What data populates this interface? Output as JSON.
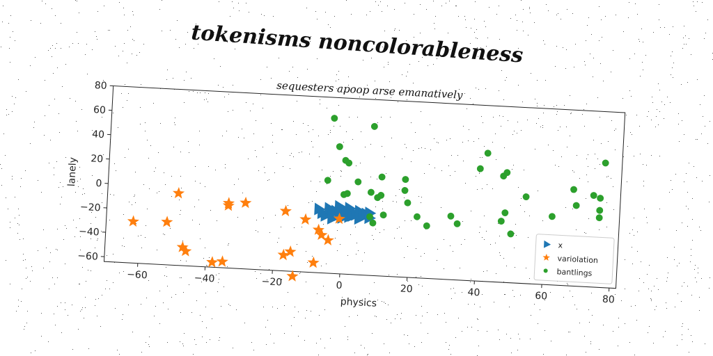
{
  "figure": {
    "suptitle": "tokenisms noncolorableness"
  },
  "chart_data": {
    "type": "scatter",
    "title": "sequesters apoop arse emanatively",
    "xlabel": "physics",
    "ylabel": "lanely",
    "xlim": [
      -70,
      82
    ],
    "ylim": [
      -64,
      80
    ],
    "xticks": [
      -60,
      -40,
      -20,
      0,
      20,
      40,
      60,
      80
    ],
    "yticks": [
      -60,
      -40,
      -20,
      0,
      20,
      40,
      60,
      80
    ],
    "xtick_labels": [
      "−60",
      "−40",
      "−20",
      "0",
      "20",
      "40",
      "60",
      "80"
    ],
    "ytick_labels": [
      "−60",
      "−40",
      "−20",
      "0",
      "20",
      "40",
      "60",
      "80"
    ],
    "grid": false,
    "legend_position": "bottom-right",
    "series": [
      {
        "name": "x",
        "marker": "triangle-right",
        "color": "#1f77b4",
        "points": [
          [
            -7,
            -12
          ],
          [
            -6,
            -15
          ],
          [
            -5,
            -17
          ],
          [
            -4,
            -11
          ],
          [
            -3,
            -14
          ],
          [
            -3,
            -19
          ],
          [
            -2,
            -13
          ],
          [
            -1,
            -16
          ],
          [
            0,
            -11
          ],
          [
            0,
            -18
          ],
          [
            1,
            -14
          ],
          [
            1,
            -12
          ],
          [
            2,
            -17
          ],
          [
            3,
            -13
          ],
          [
            3,
            -16
          ],
          [
            4,
            -15
          ],
          [
            5,
            -12
          ],
          [
            5,
            -18
          ],
          [
            6,
            -16
          ],
          [
            7,
            -14
          ],
          [
            8,
            -13
          ],
          [
            8,
            -17
          ],
          [
            -1,
            -9
          ],
          [
            2,
            -10
          ]
        ]
      },
      {
        "name": "variolation",
        "marker": "star",
        "color": "#ff7f0e",
        "points": [
          [
            -62,
            -30
          ],
          [
            -52,
            -29
          ],
          [
            -49,
            -5
          ],
          [
            -47,
            -49
          ],
          [
            -46,
            -52
          ],
          [
            -38,
            -60
          ],
          [
            -35,
            -59
          ],
          [
            -34,
            -11
          ],
          [
            -34,
            -13
          ],
          [
            -29,
            -10
          ],
          [
            -17,
            -15
          ],
          [
            -17,
            -51
          ],
          [
            -15,
            -48
          ],
          [
            -14,
            -68
          ],
          [
            -11,
            -21
          ],
          [
            -8,
            -56
          ],
          [
            -7,
            -29
          ],
          [
            -6,
            -33
          ],
          [
            -4,
            -37
          ],
          [
            -1,
            -19
          ]
        ]
      },
      {
        "name": "bantlings",
        "marker": "circle",
        "color": "#2ca02c",
        "points": [
          [
            -4,
            63
          ],
          [
            -2,
            40
          ],
          [
            -5,
            12
          ],
          [
            0,
            29
          ],
          [
            1,
            27
          ],
          [
            0,
            1
          ],
          [
            1,
            2
          ],
          [
            4,
            12
          ],
          [
            8,
            58
          ],
          [
            8,
            4
          ],
          [
            10,
            0
          ],
          [
            11,
            17
          ],
          [
            11,
            2
          ],
          [
            12,
            -14
          ],
          [
            8,
            -16
          ],
          [
            9,
            -21
          ],
          [
            18,
            16
          ],
          [
            18,
            7
          ],
          [
            19,
            -3
          ],
          [
            22,
            -14
          ],
          [
            25,
            -21
          ],
          [
            32,
            -12
          ],
          [
            34,
            -18
          ],
          [
            40,
            28
          ],
          [
            42,
            41
          ],
          [
            47,
            23
          ],
          [
            48,
            26
          ],
          [
            47,
            -14
          ],
          [
            48,
            -7
          ],
          [
            50,
            -24
          ],
          [
            54,
            7
          ],
          [
            62,
            -8
          ],
          [
            68,
            15
          ],
          [
            69,
            2
          ],
          [
            74,
            11
          ],
          [
            76,
            9
          ],
          [
            76,
            -1
          ],
          [
            76,
            -7
          ],
          [
            77,
            38
          ]
        ]
      }
    ]
  }
}
